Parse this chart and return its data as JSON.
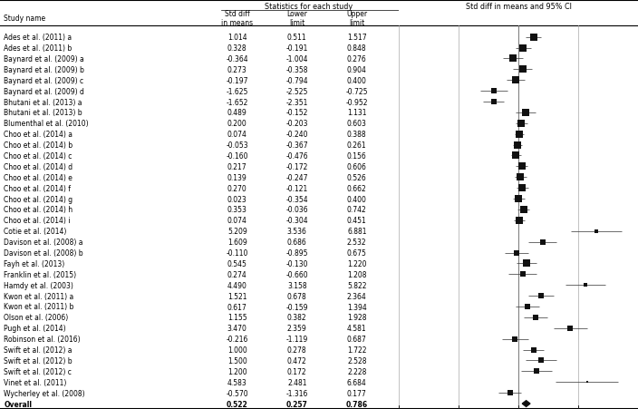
{
  "studies": [
    {
      "name": "Ades et al. (2011) a",
      "es": 1.014,
      "lower": 0.511,
      "upper": 1.517
    },
    {
      "name": "Ades et al. (2011) b",
      "es": 0.328,
      "lower": -0.191,
      "upper": 0.848
    },
    {
      "name": "Baynard et al. (2009) a",
      "es": -0.364,
      "lower": -1.004,
      "upper": 0.276
    },
    {
      "name": "Baynard et al. (2009) b",
      "es": 0.273,
      "lower": -0.358,
      "upper": 0.904
    },
    {
      "name": "Baynard et al. (2009) c",
      "es": -0.197,
      "lower": -0.794,
      "upper": 0.4
    },
    {
      "name": "Baynard et al. (2009) d",
      "es": -1.625,
      "lower": -2.525,
      "upper": -0.725
    },
    {
      "name": "Bhutani et al. (2013) a",
      "es": -1.652,
      "lower": -2.351,
      "upper": -0.952
    },
    {
      "name": "Bhutani et al. (2013) b",
      "es": 0.489,
      "lower": -0.152,
      "upper": 1.131
    },
    {
      "name": "Blumenthal et al. (2010)",
      "es": 0.2,
      "lower": -0.203,
      "upper": 0.603
    },
    {
      "name": "Choo et al. (2014) a",
      "es": 0.074,
      "lower": -0.24,
      "upper": 0.388
    },
    {
      "name": "Choo et al. (2014) b",
      "es": -0.053,
      "lower": -0.367,
      "upper": 0.261
    },
    {
      "name": "Choo et al. (2014) c",
      "es": -0.16,
      "lower": -0.476,
      "upper": 0.156
    },
    {
      "name": "Choo et al. (2014) d",
      "es": 0.217,
      "lower": -0.172,
      "upper": 0.606
    },
    {
      "name": "Choo et al. (2014) e",
      "es": 0.139,
      "lower": -0.247,
      "upper": 0.526
    },
    {
      "name": "Choo et al. (2014) f",
      "es": 0.27,
      "lower": -0.121,
      "upper": 0.662
    },
    {
      "name": "Choo et al. (2014) g",
      "es": 0.023,
      "lower": -0.354,
      "upper": 0.4
    },
    {
      "name": "Choo et al. (2014) h",
      "es": 0.353,
      "lower": -0.036,
      "upper": 0.742
    },
    {
      "name": "Choo et al. (2014) i",
      "es": 0.074,
      "lower": -0.304,
      "upper": 0.451
    },
    {
      "name": "Cotie et al. (2014)",
      "es": 5.209,
      "lower": 3.536,
      "upper": 6.881
    },
    {
      "name": "Davison et al. (2008) a",
      "es": 1.609,
      "lower": 0.686,
      "upper": 2.532
    },
    {
      "name": "Davison et al. (2008) b",
      "es": -0.11,
      "lower": -0.895,
      "upper": 0.675
    },
    {
      "name": "Fayh et al. (2013)",
      "es": 0.545,
      "lower": -0.13,
      "upper": 1.22
    },
    {
      "name": "Franklin et al. (2015)",
      "es": 0.274,
      "lower": -0.66,
      "upper": 1.208
    },
    {
      "name": "Hamdy et al. (2003)",
      "es": 4.49,
      "lower": 3.158,
      "upper": 5.822
    },
    {
      "name": "Kwon et al. (2011) a",
      "es": 1.521,
      "lower": 0.678,
      "upper": 2.364
    },
    {
      "name": "Kwon et al. (2011) b",
      "es": 0.617,
      "lower": -0.159,
      "upper": 1.394
    },
    {
      "name": "Olson et al. (2006)",
      "es": 1.155,
      "lower": 0.382,
      "upper": 1.928
    },
    {
      "name": "Pugh et al. (2014)",
      "es": 3.47,
      "lower": 2.359,
      "upper": 4.581
    },
    {
      "name": "Robinson et al. (2016)",
      "es": -0.216,
      "lower": -1.119,
      "upper": 0.687
    },
    {
      "name": "Swift et al. (2012) a",
      "es": 1.0,
      "lower": 0.278,
      "upper": 1.722
    },
    {
      "name": "Swift et al. (2012) b",
      "es": 1.5,
      "lower": 0.472,
      "upper": 2.528
    },
    {
      "name": "Swift et al. (2012) c",
      "es": 1.2,
      "lower": 0.172,
      "upper": 2.228
    },
    {
      "name": "Vinet et al. (2011)",
      "es": 4.583,
      "lower": 2.481,
      "upper": 6.684
    },
    {
      "name": "Wycherley et al. (2008)",
      "es": -0.57,
      "lower": -1.316,
      "upper": 0.177
    },
    {
      "name": "Overall",
      "es": 0.522,
      "lower": 0.257,
      "upper": 0.786
    }
  ],
  "plot_title": "Std diff in means and 95% CI",
  "table_title": "Statistics for each study",
  "xlim": [
    -8.0,
    8.0
  ],
  "xticks": [
    -8.0,
    -4.0,
    0.0,
    4.0,
    8.0
  ],
  "bg_color": "#ffffff",
  "square_color": "#111111",
  "line_color": "#444444",
  "overall_color": "#111111",
  "grid_color": "#aaaaaa",
  "zero_line_color": "#777777"
}
